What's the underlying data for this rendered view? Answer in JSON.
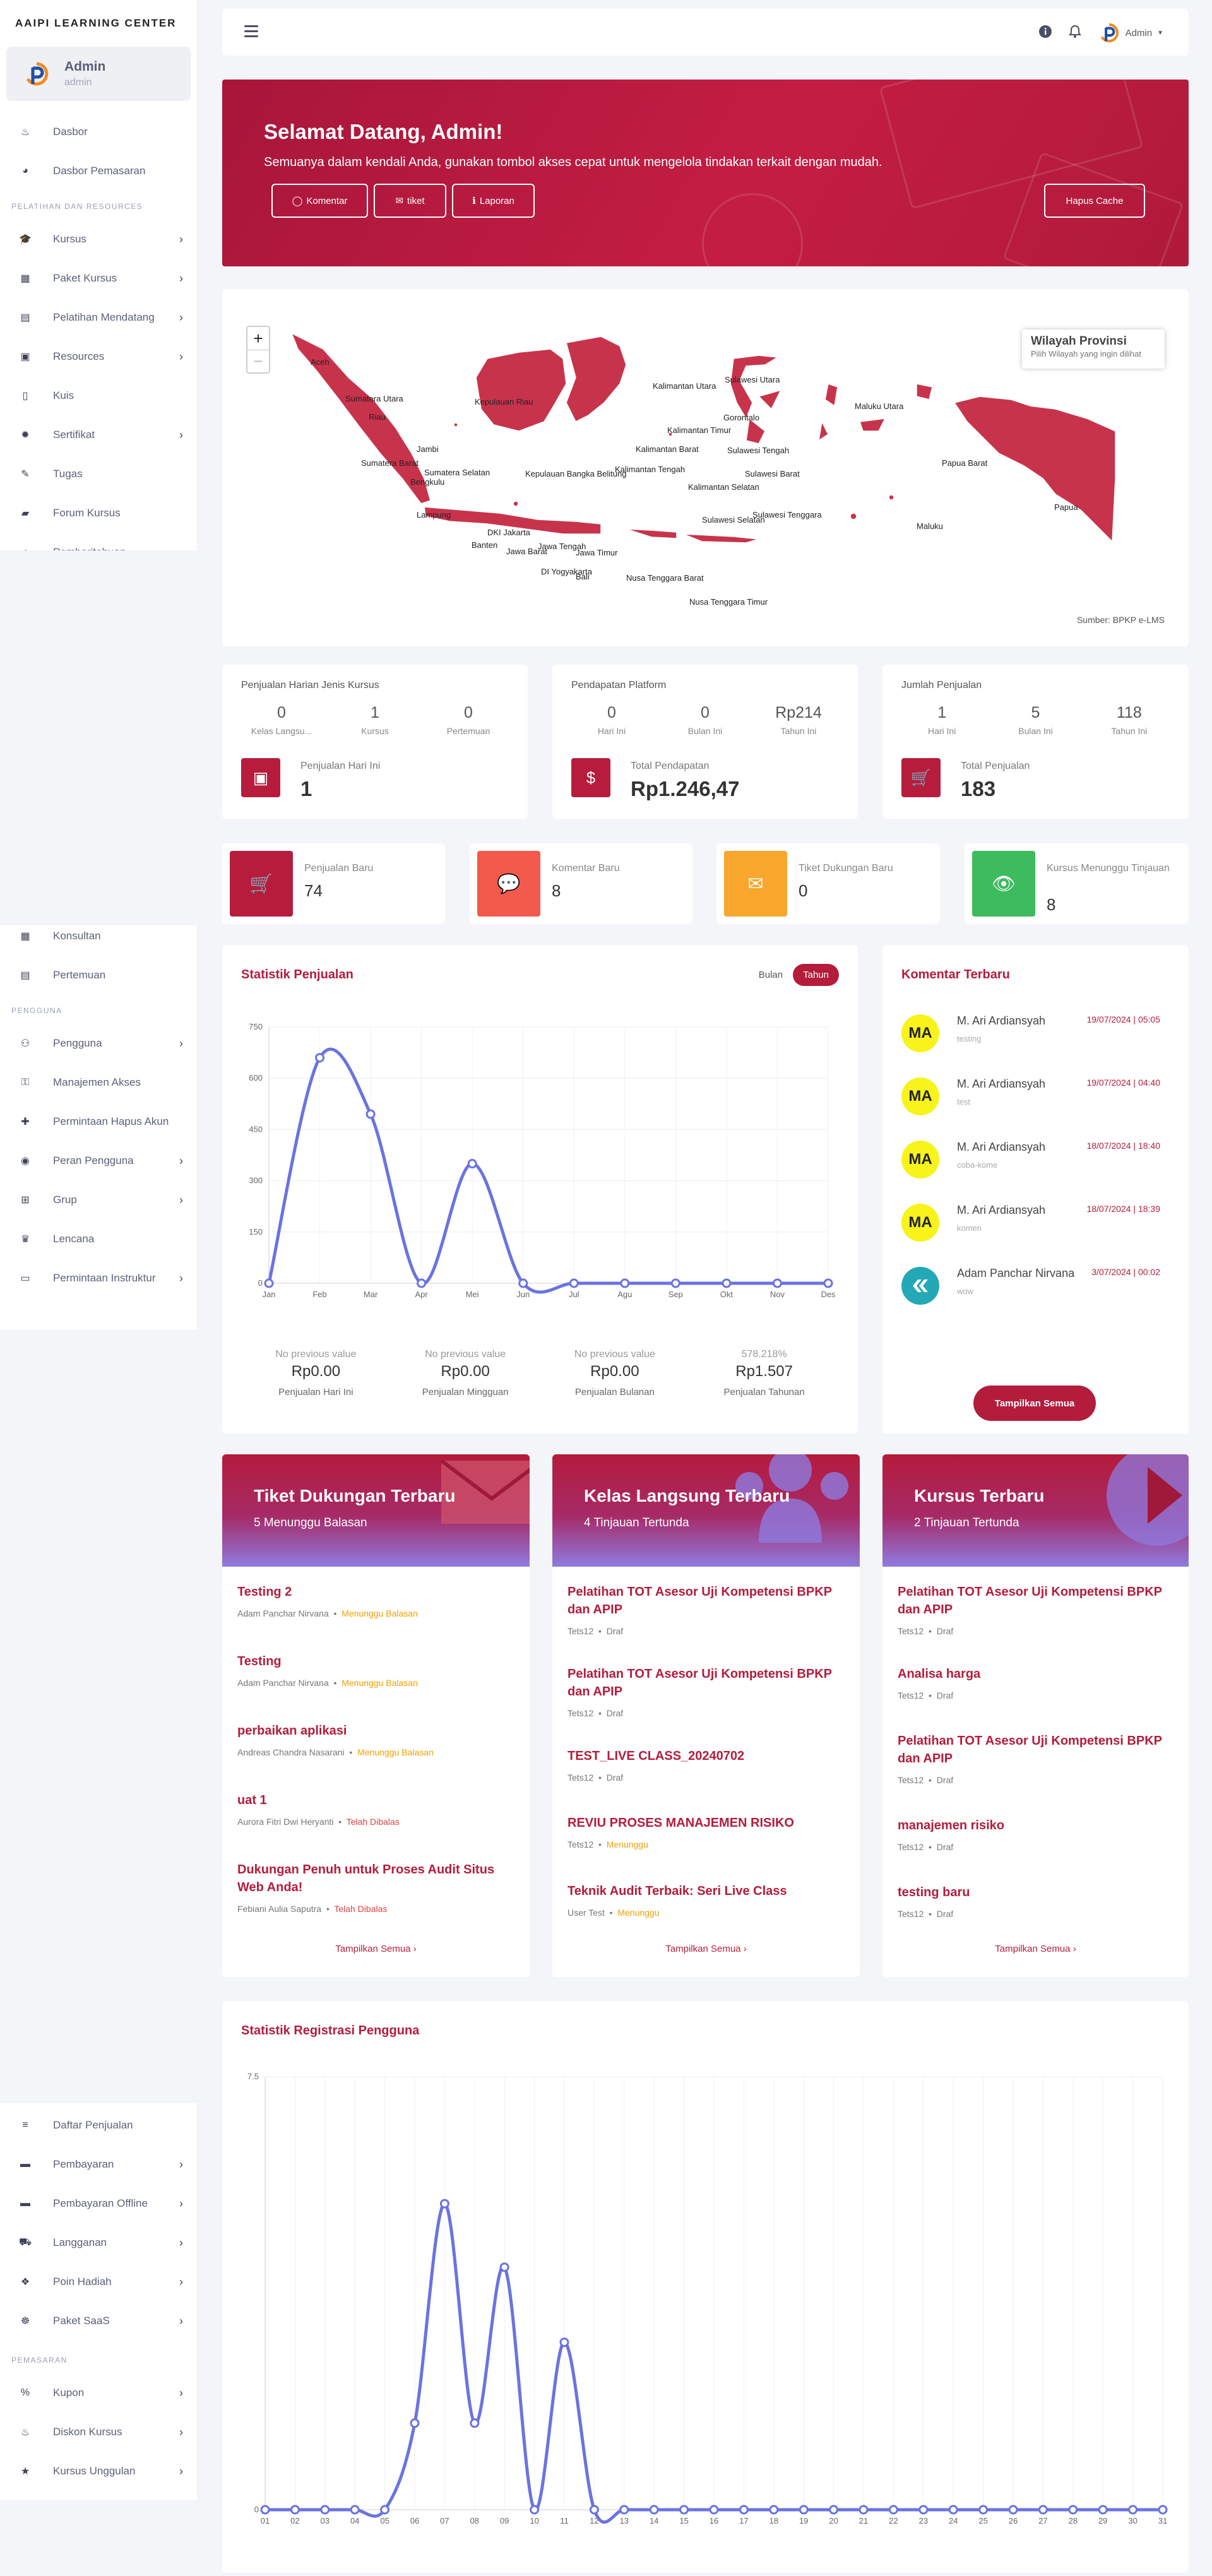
{
  "app": {
    "brand": "AAIPI LEARNING CENTER"
  },
  "user": {
    "name": "Admin",
    "role": "admin"
  },
  "sidebar": {
    "top": [
      {
        "label": "Dasbor",
        "icon": "flame-icon"
      },
      {
        "label": "Dasbor Pemasaran",
        "icon": "chart-pie-icon"
      }
    ],
    "group1": "PELATIHAN DAN RESOURCES",
    "g1items": [
      {
        "label": "Kursus",
        "icon": "graduation-cap-icon",
        "chev": true
      },
      {
        "label": "Paket Kursus",
        "icon": "box-icon",
        "chev": true
      },
      {
        "label": "Pelatihan Mendatang",
        "icon": "book-icon",
        "chev": true
      },
      {
        "label": "Resources",
        "icon": "archive-icon",
        "chev": true
      },
      {
        "label": "Kuis",
        "icon": "file-icon",
        "chev": false
      },
      {
        "label": "Sertifikat",
        "icon": "certificate-icon",
        "chev": true
      },
      {
        "label": "Tugas",
        "icon": "pencil-icon",
        "chev": false
      },
      {
        "label": "Forum Kursus",
        "icon": "comment-icon",
        "chev": false
      },
      {
        "label": "Pemberitahuan",
        "icon": "bell-icon",
        "chev": false
      }
    ],
    "mid": [
      {
        "label": "Konsultan",
        "icon": "calendar-icon"
      },
      {
        "label": "Pertemuan",
        "icon": "book-icon"
      }
    ],
    "group2": "PENGGUNA",
    "g2items": [
      {
        "label": "Pengguna",
        "icon": "users-icon",
        "chev": true
      },
      {
        "label": "Manajemen Akses",
        "icon": "user-lock-icon",
        "chev": false
      },
      {
        "label": "Permintaan Hapus Akun",
        "icon": "user-plus-icon",
        "chev": false
      },
      {
        "label": "Peran Pengguna",
        "icon": "user-circle-icon",
        "chev": true
      },
      {
        "label": "Grup",
        "icon": "sitemap-icon",
        "chev": true
      },
      {
        "label": "Lencana",
        "icon": "trophy-icon",
        "chev": false
      },
      {
        "label": "Permintaan Instruktur",
        "icon": "id-card-icon",
        "chev": true
      }
    ],
    "g3items": [
      {
        "label": "Daftar Penjualan",
        "icon": "list-icon",
        "chev": false
      },
      {
        "label": "Pembayaran",
        "icon": "credit-card-icon",
        "chev": true
      },
      {
        "label": "Pembayaran Offline",
        "icon": "credit-card-icon",
        "chev": true
      },
      {
        "label": "Langganan",
        "icon": "cart-icon",
        "chev": true
      },
      {
        "label": "Poin Hadiah",
        "icon": "gift-icon",
        "chev": true
      },
      {
        "label": "Paket SaaS",
        "icon": "handshake-icon",
        "chev": true
      }
    ],
    "group4": "PEMASARAN",
    "g4items": [
      {
        "label": "Kupon",
        "icon": "percent-icon",
        "chev": true
      },
      {
        "label": "Diskon Kursus",
        "icon": "fire-icon",
        "chev": true
      },
      {
        "label": "Kursus Unggulan",
        "icon": "star-icon",
        "chev": true
      }
    ]
  },
  "topbar": {
    "user": "Admin"
  },
  "hero": {
    "title": "Selamat Datang, Admin!",
    "subtitle": "Semuanya dalam kendali Anda, gunakan tombol akses cepat untuk mengelola tindakan terkait dengan mudah.",
    "btn_komentar": "Komentar",
    "btn_tiket": "tiket",
    "btn_laporan": "Laporan",
    "btn_cache": "Hapus Cache"
  },
  "map": {
    "legend_title": "Wilayah Provinsi",
    "legend_sub": "Pilih Wilayah yang ingin dilihat",
    "source": "Sumber: BPKP e-LMS",
    "labels": [
      "Aceh",
      "Sumatera Utara",
      "Riau",
      "Sumatera Barat",
      "Jambi",
      "Sumatera Selatan",
      "Bengkulu",
      "Lampung",
      "Kepulauan Riau",
      "Kepulauan Bangka Belitung",
      "DKI Jakarta",
      "Banten",
      "Jawa Barat",
      "Jawa Tengah",
      "DI Yogyakarta",
      "Jawa Timur",
      "Bali",
      "Nusa Tenggara Barat",
      "Nusa Tenggara Timur",
      "Kalimantan Barat",
      "Kalimantan Utara",
      "Kalimantan Timur",
      "Kalimantan Tengah",
      "Kalimantan Selatan",
      "Sulawesi Utara",
      "Gorontalo",
      "Sulawesi Tengah",
      "Sulawesi Barat",
      "Sulawesi Selatan",
      "Sulawesi Tenggara",
      "Maluku Utara",
      "Maluku",
      "Papua Barat",
      "Papua"
    ]
  },
  "stats": {
    "daily": {
      "title": "Penjualan Harian Jenis Kursus",
      "items": [
        {
          "v": "0",
          "l": "Kelas Langsu..."
        },
        {
          "v": "1",
          "l": "Kursus"
        },
        {
          "v": "0",
          "l": "Pertemuan"
        }
      ],
      "big_label": "Penjualan Hari Ini",
      "big_value": "1"
    },
    "income": {
      "title": "Pendapatan Platform",
      "items": [
        {
          "v": "0",
          "l": "Hari Ini"
        },
        {
          "v": "0",
          "l": "Bulan Ini"
        },
        {
          "v": "Rp214",
          "l": "Tahun Ini"
        }
      ],
      "big_label": "Total Pendapatan",
      "big_value": "Rp1.246,47"
    },
    "sales": {
      "title": "Jumlah Penjualan",
      "items": [
        {
          "v": "1",
          "l": "Hari Ini"
        },
        {
          "v": "5",
          "l": "Bulan Ini"
        },
        {
          "v": "118",
          "l": "Tahun Ini"
        }
      ],
      "big_label": "Total Penjualan",
      "big_value": "183"
    }
  },
  "quick": [
    {
      "label": "Penjualan Baru",
      "value": "74",
      "color": "#b71c3c",
      "icon": "cart-icon"
    },
    {
      "label": "Komentar Baru",
      "value": "8",
      "color": "#f35a4b",
      "icon": "comment-icon"
    },
    {
      "label": "Tiket Dukungan Baru",
      "value": "0",
      "color": "#f8a62c",
      "icon": "envelope-icon"
    },
    {
      "label": "Kursus Menunggu Tinjauan",
      "value": "8",
      "color": "#3dbb5e",
      "icon": "eye-icon"
    }
  ],
  "sales_chart": {
    "title": "Statistik Penjualan",
    "tab_month": "Bulan",
    "tab_year": "Tahun",
    "summary": [
      {
        "a": "No previous value",
        "b": "Rp0.00",
        "c": "Penjualan Hari Ini"
      },
      {
        "a": "No previous value",
        "b": "Rp0.00",
        "c": "Penjualan Mingguan"
      },
      {
        "a": "No previous value",
        "b": "Rp0.00",
        "c": "Penjualan Bulanan"
      },
      {
        "a": "578.218%",
        "b": "Rp1.507",
        "c": "Penjualan Tahunan"
      }
    ]
  },
  "chart_data": [
    {
      "type": "line",
      "categories": [
        "Jan",
        "Feb",
        "Mar",
        "Apr",
        "Mei",
        "Jun",
        "Jul",
        "Agu",
        "Sep",
        "Okt",
        "Nov",
        "Des"
      ],
      "values": [
        0,
        660,
        495,
        0,
        350,
        0,
        0,
        0,
        0,
        0,
        0,
        0
      ],
      "yticks": [
        0,
        150,
        300,
        450,
        600,
        750
      ],
      "ylim": [
        0,
        750
      ],
      "color": "#6a73e0"
    },
    {
      "type": "line",
      "title": "Statistik Registrasi Pengguna",
      "categories": [
        "01",
        "02",
        "03",
        "04",
        "05",
        "06",
        "07",
        "08",
        "09",
        "10",
        "11",
        "12",
        "13",
        "14",
        "15",
        "16",
        "17",
        "18",
        "19",
        "20",
        "21",
        "22",
        "23",
        "24",
        "25",
        "26",
        "27",
        "28",
        "29",
        "30",
        "31"
      ],
      "values": [
        0,
        0,
        0,
        0,
        0,
        1.5,
        5.3,
        1.5,
        4.2,
        0,
        2.9,
        0,
        0,
        0,
        0,
        0,
        0,
        0,
        0,
        0,
        0,
        0,
        0,
        0,
        0,
        0,
        0,
        0,
        0,
        0,
        0
      ],
      "yticks": [
        0,
        7.5
      ],
      "ylim": [
        0,
        7.5
      ],
      "color": "#6a73e0"
    }
  ],
  "comments": {
    "title": "Komentar Terbaru",
    "more": "Tampilkan Semua",
    "items": [
      {
        "av": "MA",
        "name": "M. Ari Ardiansyah",
        "text": "testing",
        "date": "19/07/2024 | 05:05"
      },
      {
        "av": "MA",
        "name": "M. Ari Ardiansyah",
        "text": "test",
        "date": "19/07/2024 | 04:40"
      },
      {
        "av": "MA",
        "name": "M. Ari Ardiansyah",
        "text": "coba-kome",
        "date": "18/07/2024 | 18:40"
      },
      {
        "av": "MA",
        "name": "M. Ari Ardiansyah",
        "text": "komen",
        "date": "18/07/2024 | 18:39"
      },
      {
        "av": "",
        "name": "Adam Panchar Nirvana",
        "text": "wow",
        "date": "3/07/2024 | 00:02"
      }
    ]
  },
  "tickets": {
    "title": "Tiket Dukungan Terbaru",
    "sub": "5 Menunggu Balasan",
    "more": "Tampilkan Semua",
    "items": [
      {
        "t": "Testing 2",
        "who": "Adam Panchar Nirvana",
        "st": "Menunggu Balasan",
        "warn": true
      },
      {
        "t": "Testing",
        "who": "Adam Panchar Nirvana",
        "st": "Menunggu Balasan",
        "warn": true
      },
      {
        "t": "perbaikan aplikasi",
        "who": "Andreas Chandra Nasarani",
        "st": "Menunggu Balasan",
        "warn": true
      },
      {
        "t": "uat 1",
        "who": "Aurora Fitri Dwi Heryanti",
        "st": "Telah Dibalas",
        "warn": false
      },
      {
        "t": "Dukungan Penuh untuk Proses Audit Situs Web Anda!",
        "who": "Febiani Aulia Saputra",
        "st": "Telah Dibalas",
        "warn": false
      }
    ]
  },
  "live": {
    "title": "Kelas Langsung Terbaru",
    "sub": "4 Tinjauan Tertunda",
    "more": "Tampilkan Semua",
    "items": [
      {
        "t": "Pelatihan TOT Asesor Uji Kompetensi BPKP dan APIP",
        "who": "Tets12",
        "st": "Draf",
        "warn": false
      },
      {
        "t": "Pelatihan TOT Asesor Uji Kompetensi BPKP dan APIP",
        "who": "Tets12",
        "st": "Draf",
        "warn": false
      },
      {
        "t": "TEST_LIVE CLASS_20240702",
        "who": "Tets12",
        "st": "Draf",
        "warn": false
      },
      {
        "t": "REVIU PROSES MANAJEMEN RISIKO",
        "who": "Tets12",
        "st": "Menunggu",
        "warn": true
      },
      {
        "t": "Teknik Audit Terbaik: Seri Live Class",
        "who": "User Test",
        "st": "Menunggu",
        "warn": true
      }
    ]
  },
  "courses": {
    "title": "Kursus Terbaru",
    "sub": "2 Tinjauan Tertunda",
    "more": "Tampilkan Semua",
    "items": [
      {
        "t": "Pelatihan TOT Asesor Uji Kompetensi BPKP dan APIP",
        "who": "Tets12",
        "st": "Draf",
        "warn": false
      },
      {
        "t": "Analisa harga",
        "who": "Tets12",
        "st": "Draf",
        "warn": false
      },
      {
        "t": "Pelatihan TOT Asesor Uji Kompetensi BPKP dan APIP",
        "who": "Tets12",
        "st": "Draf",
        "warn": false
      },
      {
        "t": "manajemen risiko",
        "who": "Tets12",
        "st": "Draf",
        "warn": false
      },
      {
        "t": "testing baru",
        "who": "Tets12",
        "st": "Draf",
        "warn": false
      }
    ]
  }
}
